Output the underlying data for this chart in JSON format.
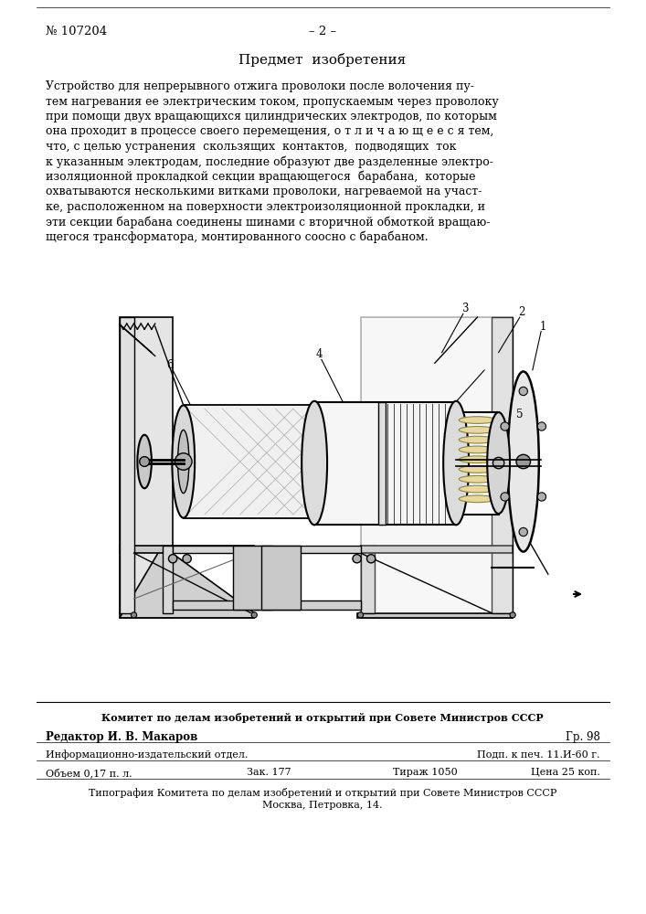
{
  "bg_color": "#ffffff",
  "page_number_left": "№ 107204",
  "page_number_center": "– 2 –",
  "section_title": "Предмет  изобретения",
  "body_lines": [
    "Устройство для непрерывного отжига проволоки после волочения пу-",
    "тем нагревания ее электрическим током, пропускаемым через проволоку",
    "при помощи двух вращающихся цилиндрических электродов, по которым",
    "она проходит в процессе своего перемещения, о т л и ч а ю щ е е с я тем,",
    "что, с целью устранения  скользящих  контактов,  подводящих  ток",
    "к указанным электродам, последние образуют две разделенные электро-",
    "изоляционной прокладкой секции вращающегося  барабана,  которые",
    "охватываются несколькими витками проволоки, нагреваемой на участ-",
    "ке, расположенном на поверхности электроизоляционной прокладки, и",
    "эти секции барабана соединены шинами с вторичной обмоткой вращаю-",
    "щегося трансформатора, монтированного соосно с барабаном."
  ],
  "footer_line1": "Комитет по делам изобретений и открытий при Совете Министров СССР",
  "footer_line2_left": "Редактор И. В. Макаров",
  "footer_line2_right": "Гр. 98",
  "footer_line3_left": "Информационно-издательский отдел.",
  "footer_line3_right": "Подп. к печ. 11.И-60 г.",
  "footer_line4_left": "Объем 0,17 п. л.",
  "footer_line4_mid": "Зак. 177",
  "footer_line4_tirazh": "Тираж 1050",
  "footer_line4_price": "Цена 25 коп.",
  "footer_line5": "Типография Комитета по делам изобретений и открытий при Совете Министров СССР",
  "footer_line6": "Москва, Петровка, 14."
}
